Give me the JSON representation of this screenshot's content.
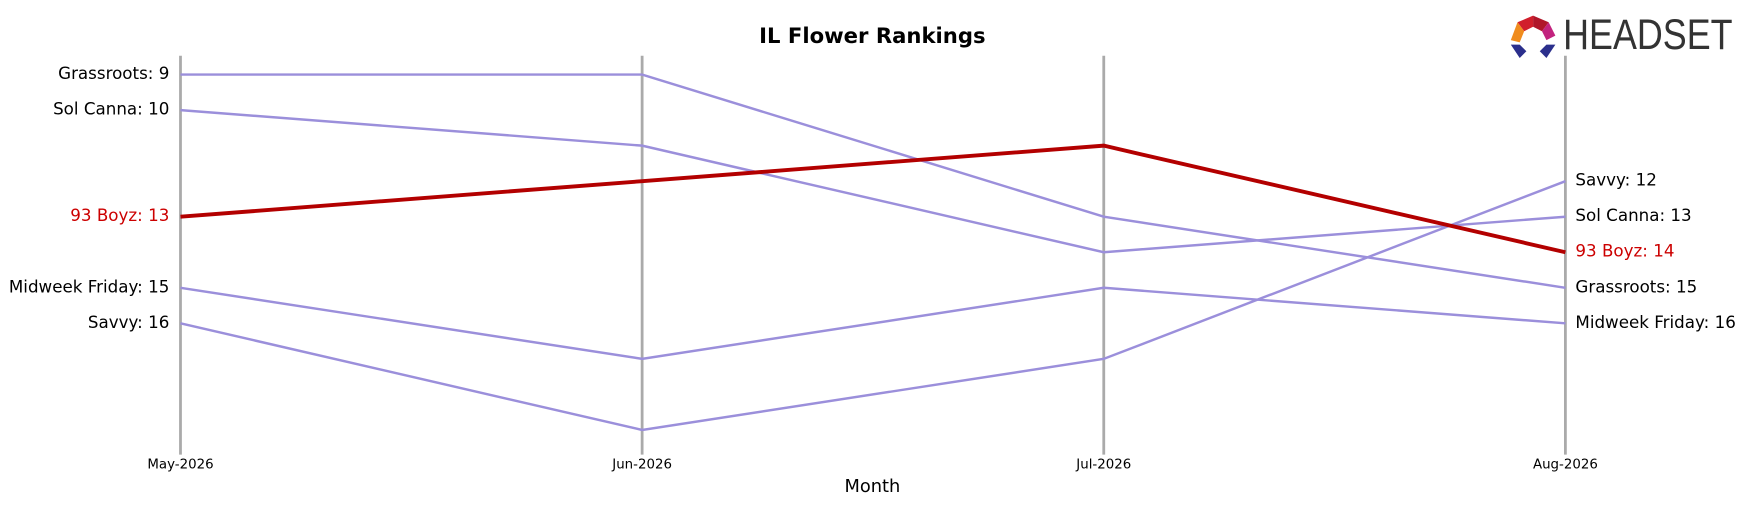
{
  "chart_data": {
    "type": "bump",
    "title": "IL Flower Rankings",
    "x_label": "Month",
    "logo": "HEADSET",
    "categories": [
      "May-2026",
      "Jun-2026",
      "Jul-2026",
      "Aug-2026"
    ],
    "ylim": [
      8.47,
      19.6
    ],
    "y_inverted": true,
    "series": [
      {
        "name": "Grassroots",
        "color": "#9b8fdb",
        "label_color": "#000000",
        "values": [
          9,
          9,
          13,
          15
        ],
        "value_labels": [
          "Grassroots: 9",
          null,
          null,
          "Grassroots: 15"
        ]
      },
      {
        "name": "Sol Canna",
        "color": "#9b8fdb",
        "label_color": "#000000",
        "values": [
          10,
          11,
          14,
          13
        ],
        "value_labels": [
          "Sol Canna: 10",
          null,
          null,
          "Sol Canna: 13"
        ]
      },
      {
        "name": "93 Boyz",
        "color": "#b30000",
        "label_color": "#cc0000",
        "highlight": true,
        "values": [
          13,
          12,
          11,
          14
        ],
        "value_labels": [
          "93 Boyz: 13",
          null,
          null,
          "93 Boyz: 14"
        ]
      },
      {
        "name": "Midweek Friday",
        "color": "#9b8fdb",
        "label_color": "#000000",
        "values": [
          15,
          17,
          15,
          16
        ],
        "value_labels": [
          "Midweek Friday: 15",
          null,
          null,
          "Midweek Friday: 16"
        ]
      },
      {
        "name": "Savvy",
        "color": "#9b8fdb",
        "label_color": "#000000",
        "values": [
          16,
          19,
          17,
          12
        ],
        "value_labels": [
          "Savvy: 16",
          null,
          null,
          "Savvy: 12"
        ]
      }
    ]
  }
}
